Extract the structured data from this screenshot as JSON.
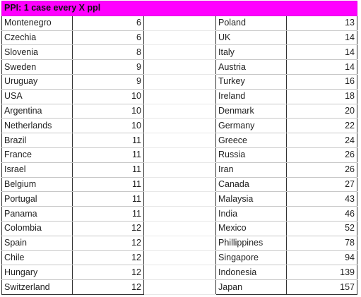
{
  "title": "PPI: 1 case every X ppl",
  "left_rows": [
    {
      "country": "Montenegro",
      "value": "6"
    },
    {
      "country": "Czechia",
      "value": "6"
    },
    {
      "country": "Slovenia",
      "value": "8"
    },
    {
      "country": "Sweden",
      "value": "9"
    },
    {
      "country": "Uruguay",
      "value": "9"
    },
    {
      "country": "USA",
      "value": "10"
    },
    {
      "country": "Argentina",
      "value": "10"
    },
    {
      "country": "Netherlands",
      "value": "10"
    },
    {
      "country": "Brazil",
      "value": "11"
    },
    {
      "country": "France",
      "value": "11"
    },
    {
      "country": "Israel",
      "value": "11"
    },
    {
      "country": "Belgium",
      "value": "11"
    },
    {
      "country": "Portugal",
      "value": "11"
    },
    {
      "country": "Panama",
      "value": "11"
    },
    {
      "country": "Colombia",
      "value": "12"
    },
    {
      "country": "Spain",
      "value": "12"
    },
    {
      "country": "Chile",
      "value": "12"
    },
    {
      "country": "Hungary",
      "value": "12"
    },
    {
      "country": "Switzerland",
      "value": "12"
    }
  ],
  "right_rows": [
    {
      "country": "Poland",
      "value": "13"
    },
    {
      "country": "UK",
      "value": "14"
    },
    {
      "country": "Italy",
      "value": "14"
    },
    {
      "country": "Austria",
      "value": "14"
    },
    {
      "country": "Turkey",
      "value": "16"
    },
    {
      "country": "Ireland",
      "value": "18"
    },
    {
      "country": "Denmark",
      "value": "20"
    },
    {
      "country": "Germany",
      "value": "22"
    },
    {
      "country": "Greece",
      "value": "24"
    },
    {
      "country": "Russia",
      "value": "26"
    },
    {
      "country": "Iran",
      "value": "26"
    },
    {
      "country": "Canada",
      "value": "27"
    },
    {
      "country": "Malaysia",
      "value": "43"
    },
    {
      "country": "India",
      "value": "46"
    },
    {
      "country": "Mexico",
      "value": "52"
    },
    {
      "country": "Phillippines",
      "value": "78"
    },
    {
      "country": "Singapore",
      "value": "94"
    },
    {
      "country": "Indonesia",
      "value": "139"
    },
    {
      "country": "Japan",
      "value": "157"
    }
  ],
  "colors": {
    "header_bg": "#ff00ff"
  }
}
